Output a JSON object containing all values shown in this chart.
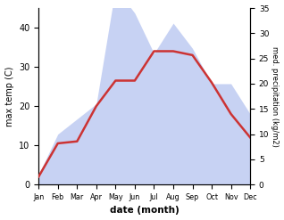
{
  "months": [
    "Jan",
    "Feb",
    "Mar",
    "Apr",
    "May",
    "Jun",
    "Jul",
    "Aug",
    "Sep",
    "Oct",
    "Nov",
    "Dec"
  ],
  "month_indices": [
    1,
    2,
    3,
    4,
    5,
    6,
    7,
    8,
    9,
    10,
    11,
    12
  ],
  "max_temp": [
    2,
    10.5,
    11,
    20,
    26.5,
    26.5,
    34,
    34,
    33,
    26,
    18,
    12
  ],
  "precipitation": [
    2,
    10,
    13,
    16,
    39,
    34,
    26,
    32,
    27,
    20,
    20,
    14
  ],
  "temp_ylim": [
    0,
    45
  ],
  "temp_yticks": [
    0,
    10,
    20,
    30,
    40
  ],
  "precip_ylim": [
    0,
    35
  ],
  "precip_yticks": [
    0,
    5,
    10,
    15,
    20,
    25,
    30,
    35
  ],
  "line_color": "#cc3333",
  "fill_color": "#aabbee",
  "fill_alpha": 0.65,
  "xlabel": "date (month)",
  "ylabel_left": "max temp (C)",
  "ylabel_right": "med. precipitation (kg/m2)",
  "background_color": "#ffffff",
  "line_width": 1.8,
  "temp_scale_max": 45,
  "precip_scale_max": 35
}
